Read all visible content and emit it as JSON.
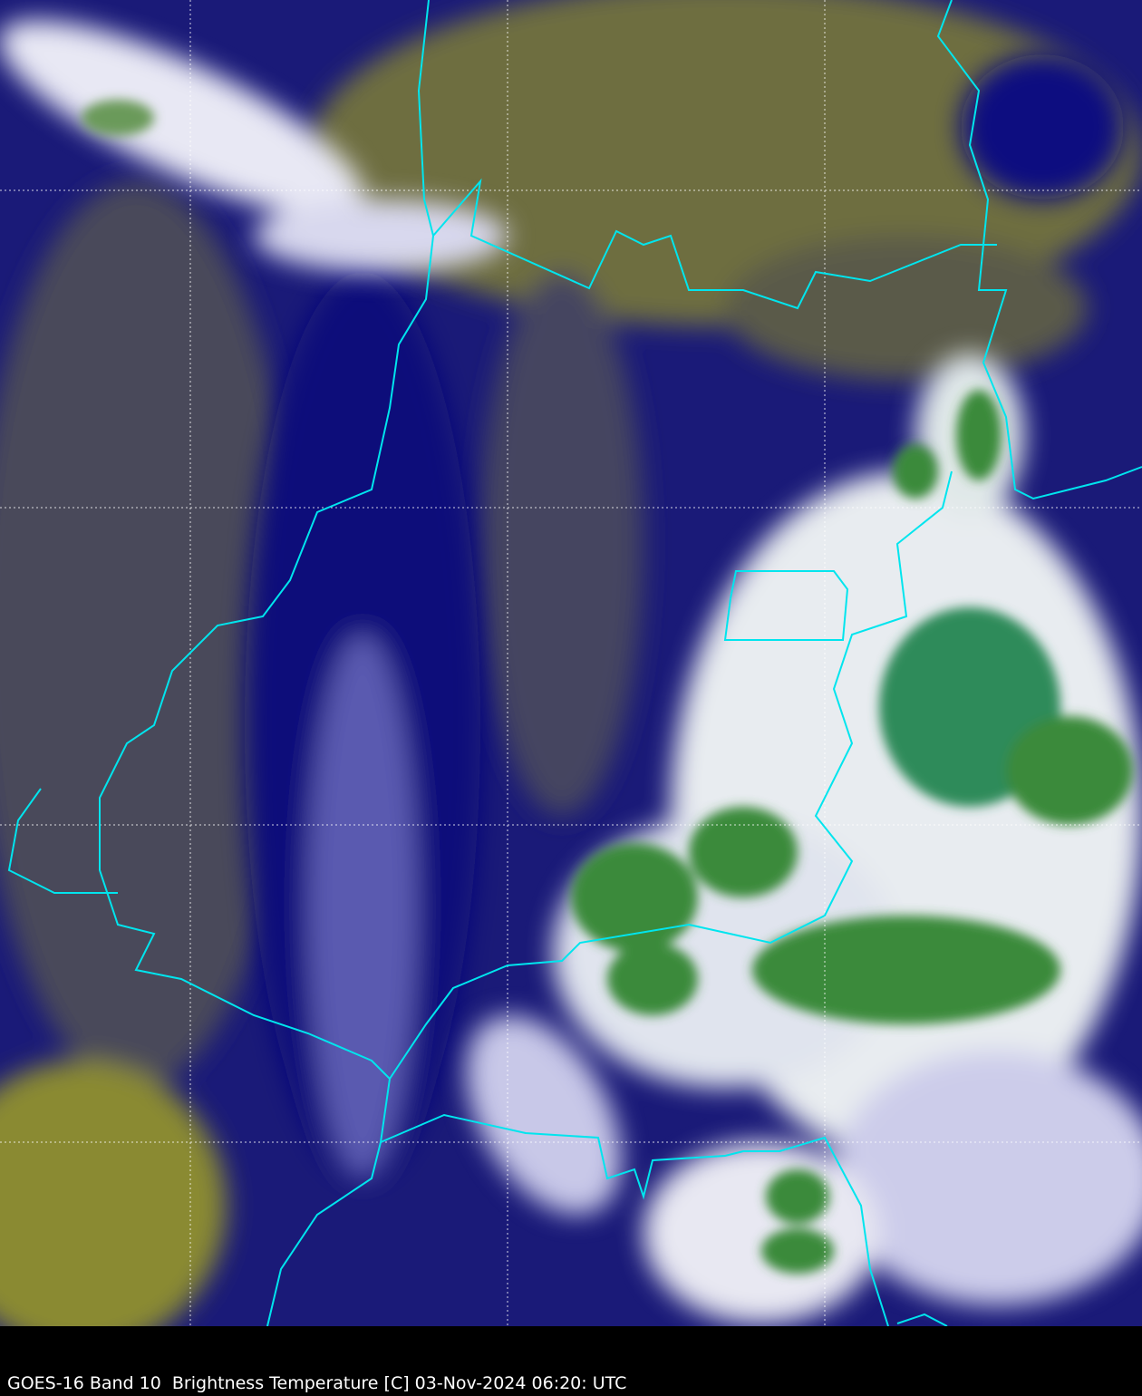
{
  "caption": "GOES-16 Band 10  Brightness Temperature [C] 03-Nov-2024 06:20: UTC",
  "colors": {
    "warm_surface": "#7a7a3a",
    "mid_cloud": "#000080",
    "high_cloud": "#ffffff",
    "coldest_tops": "#2e8b3a",
    "borders": "#00e5ee",
    "gridlines": "#ffffff",
    "caption_bar": "#000000"
  }
}
